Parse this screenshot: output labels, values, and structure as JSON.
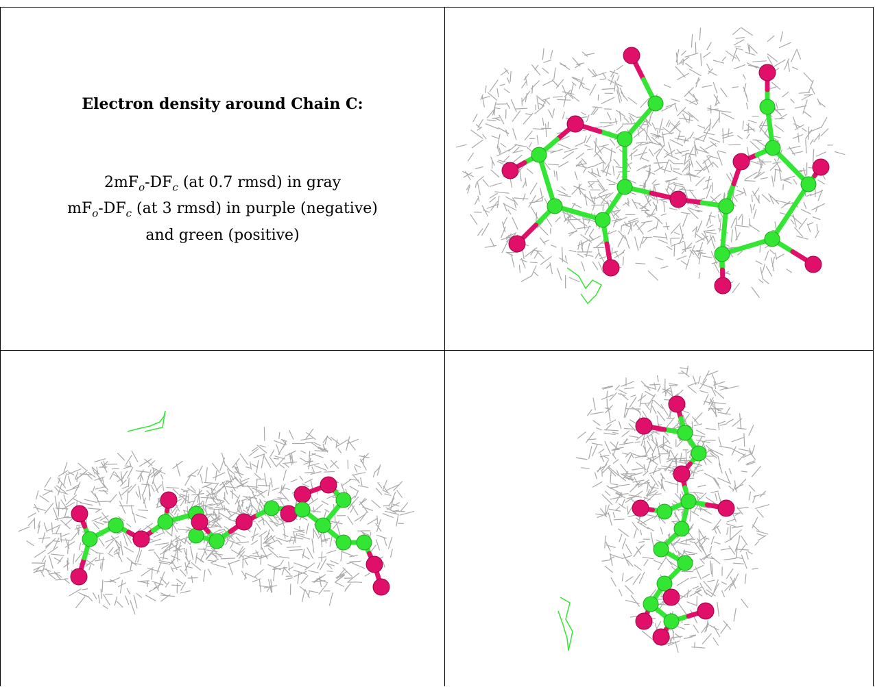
{
  "caption": {
    "title": "Electron density around Chain C:",
    "line1": {
      "prefix": "2mF",
      "s1": "o",
      "mid": "-DF",
      "s2": "c",
      "suffix": " (at 0.7 rmsd) in gray"
    },
    "line2": {
      "prefix": "mF",
      "s1": "o",
      "mid": "-DF",
      "s2": "c",
      "suffix": " (at 3 rmsd) in purple (negative)"
    },
    "line3": "and green (positive)"
  },
  "colors": {
    "mesh": "#a8a8a8",
    "carbon": "#33e633",
    "oxygen": "#e0106a",
    "positive_density": "#33e633"
  },
  "panels": [
    "view-top-right",
    "view-bottom-left",
    "view-bottom-right"
  ]
}
